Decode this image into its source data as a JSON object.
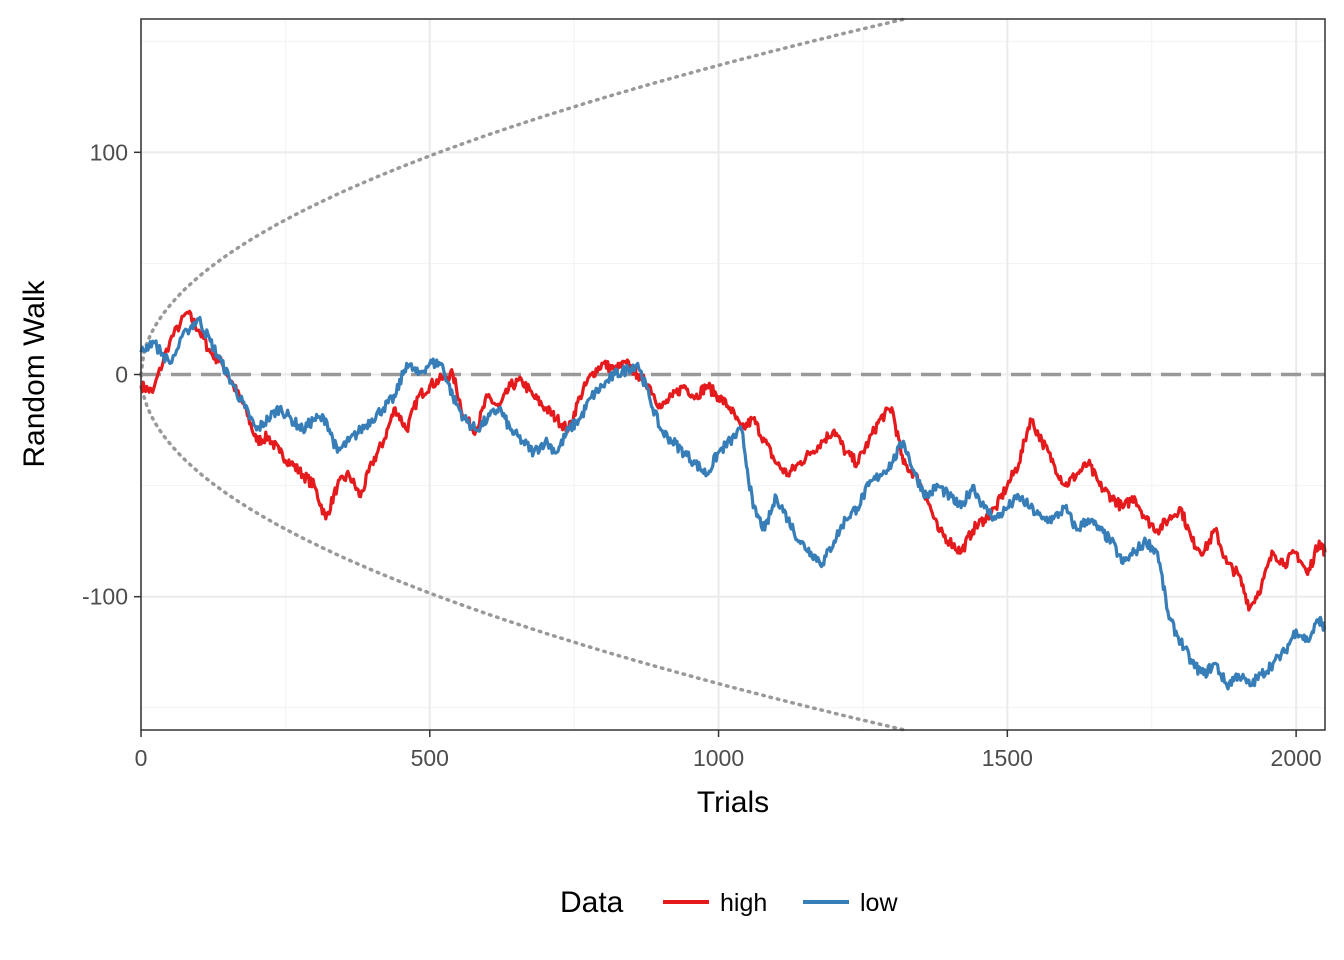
{
  "chart_data": {
    "type": "line",
    "xlabel": "Trials",
    "ylabel": "Random Walk",
    "xlim": [
      0,
      2050
    ],
    "ylim": [
      -160,
      160
    ],
    "x_ticks": [
      0,
      500,
      1000,
      1500,
      2000
    ],
    "y_ticks": [
      -100,
      0,
      100
    ],
    "x_tick_labels": [
      "0",
      "500",
      "1000",
      "1500",
      "2000"
    ],
    "y_tick_labels": [
      "-100",
      "0",
      "100"
    ],
    "grid": true,
    "legend": {
      "title": "Data",
      "position": "bottom"
    },
    "reference_lines": {
      "zero": {
        "y": 0,
        "style": "dashed",
        "color": "#999999"
      },
      "bound": {
        "formula": "y = ±sqrt(2·x·ln(ln(x)))-style envelope (approx. ±sqrt(20·x))",
        "style": "dotted",
        "color": "#999999",
        "coefficient": 4.4
      }
    },
    "series": [
      {
        "name": "high",
        "color": "#E41A1C",
        "x": [
          0,
          20,
          50,
          80,
          100,
          120,
          140,
          160,
          180,
          200,
          220,
          240,
          260,
          280,
          300,
          320,
          340,
          360,
          380,
          400,
          420,
          440,
          460,
          480,
          500,
          520,
          540,
          560,
          580,
          600,
          620,
          640,
          660,
          680,
          700,
          720,
          740,
          760,
          780,
          800,
          820,
          840,
          860,
          880,
          900,
          920,
          940,
          960,
          980,
          1000,
          1020,
          1040,
          1060,
          1080,
          1100,
          1120,
          1140,
          1160,
          1180,
          1200,
          1220,
          1240,
          1260,
          1280,
          1300,
          1320,
          1340,
          1360,
          1380,
          1400,
          1420,
          1440,
          1460,
          1480,
          1500,
          1520,
          1540,
          1560,
          1580,
          1600,
          1620,
          1640,
          1660,
          1680,
          1700,
          1720,
          1740,
          1760,
          1780,
          1800,
          1820,
          1840,
          1860,
          1880,
          1900,
          1920,
          1940,
          1960,
          1980,
          2000,
          2020,
          2040,
          2050
        ],
        "y": [
          -5,
          -8,
          15,
          28,
          20,
          10,
          5,
          -5,
          -15,
          -30,
          -28,
          -35,
          -40,
          -45,
          -50,
          -65,
          -50,
          -45,
          -55,
          -40,
          -30,
          -15,
          -25,
          -10,
          -5,
          -2,
          0,
          -20,
          -25,
          -10,
          -15,
          -5,
          -3,
          -10,
          -15,
          -20,
          -25,
          -10,
          0,
          5,
          2,
          5,
          0,
          -5,
          -15,
          -10,
          -5,
          -10,
          -5,
          -10,
          -15,
          -25,
          -20,
          -30,
          -40,
          -45,
          -40,
          -35,
          -30,
          -25,
          -35,
          -40,
          -30,
          -20,
          -15,
          -40,
          -45,
          -55,
          -70,
          -75,
          -80,
          -70,
          -65,
          -60,
          -50,
          -40,
          -20,
          -30,
          -40,
          -50,
          -45,
          -40,
          -50,
          -55,
          -60,
          -55,
          -65,
          -70,
          -65,
          -60,
          -75,
          -80,
          -70,
          -85,
          -90,
          -105,
          -95,
          -80,
          -85,
          -80,
          -90,
          -75,
          -80
        ]
      },
      {
        "name": "low",
        "color": "#377EB8",
        "x": [
          0,
          20,
          50,
          80,
          100,
          120,
          140,
          160,
          180,
          200,
          220,
          240,
          260,
          280,
          300,
          320,
          340,
          360,
          380,
          400,
          420,
          440,
          460,
          480,
          500,
          520,
          540,
          560,
          580,
          600,
          620,
          640,
          660,
          680,
          700,
          720,
          740,
          760,
          780,
          800,
          820,
          840,
          860,
          880,
          900,
          920,
          940,
          960,
          980,
          1000,
          1020,
          1040,
          1060,
          1080,
          1100,
          1120,
          1140,
          1160,
          1180,
          1200,
          1220,
          1240,
          1260,
          1280,
          1300,
          1320,
          1340,
          1360,
          1380,
          1400,
          1420,
          1440,
          1460,
          1480,
          1500,
          1520,
          1540,
          1560,
          1580,
          1600,
          1620,
          1640,
          1660,
          1680,
          1700,
          1720,
          1740,
          1760,
          1780,
          1800,
          1820,
          1840,
          1860,
          1880,
          1900,
          1920,
          1940,
          1960,
          1980,
          2000,
          2020,
          2040,
          2050
        ],
        "y": [
          10,
          15,
          5,
          20,
          25,
          15,
          5,
          -5,
          -15,
          -25,
          -20,
          -15,
          -20,
          -25,
          -20,
          -20,
          -35,
          -30,
          -25,
          -20,
          -15,
          -10,
          5,
          0,
          5,
          5,
          -10,
          -20,
          -25,
          -20,
          -15,
          -25,
          -30,
          -35,
          -30,
          -35,
          -25,
          -20,
          -10,
          -5,
          0,
          2,
          5,
          -10,
          -25,
          -30,
          -35,
          -40,
          -45,
          -35,
          -30,
          -25,
          -60,
          -70,
          -55,
          -65,
          -75,
          -80,
          -85,
          -75,
          -65,
          -60,
          -50,
          -45,
          -40,
          -30,
          -45,
          -55,
          -50,
          -55,
          -60,
          -50,
          -60,
          -65,
          -60,
          -55,
          -60,
          -65,
          -65,
          -60,
          -70,
          -65,
          -70,
          -75,
          -85,
          -80,
          -75,
          -80,
          -110,
          -120,
          -130,
          -135,
          -130,
          -140,
          -135,
          -140,
          -135,
          -130,
          -125,
          -115,
          -120,
          -110,
          -115
        ]
      }
    ]
  }
}
